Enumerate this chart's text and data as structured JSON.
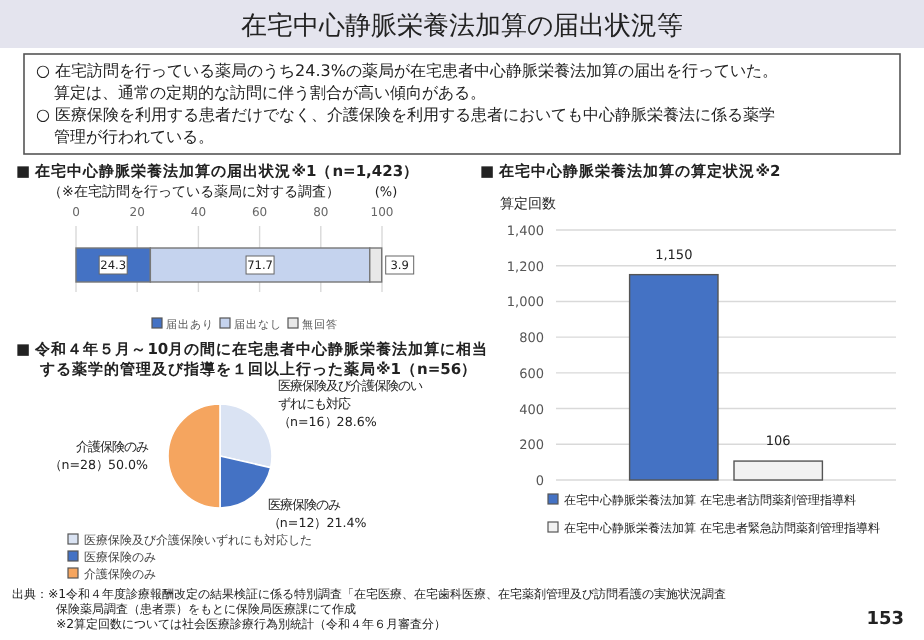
{
  "chart_data": [
    {
      "type": "other",
      "title": "在宅中心静脈栄養法加算の届出状況等",
      "annotations": [
        "○ 在宅訪問を行っている薬局のうち24.3%の薬局が在宅患者中心静脈栄養法加算の届出を行っていた。",
        "算定は、通常の定期的な訪問に伴う割合が高い傾向がある。",
        "○ 医療保険を利用する患者だけでなく、介護保険を利用する患者においても中心静脈栄養法に係る薬学管理が行われている。",
        "出典：※1令和４年度診療報酬改定の結果検証に係る特別調査「在宅医療、在宅歯科医療、在宅薬剤管理及び訪問看護の実施状況調査",
        "保険薬局調査（患者票）をもとに保険局医療課にて作成",
        "※2算定回数については社会医療診療行為別統計（令和４年６月審査分）",
        "153"
      ]
    },
    {
      "type": "bar",
      "orientation": "horizontal",
      "stacked": true,
      "title": "■ 在宅中心静脈栄養法加算の届出状況※1（n=1,423）",
      "subtitle": "（※在宅訪問を行っている薬局に対する調査）",
      "xlabel": "(%)",
      "categories": [
        null
      ],
      "series": [
        {
          "name": "届出あり",
          "color": "#4472c4",
          "values": [
            24.3
          ]
        },
        {
          "name": "届出なし",
          "color": "#c5d3ee",
          "values": [
            71.7
          ]
        },
        {
          "name": "無回答",
          "color": "#e8e8e8",
          "values": [
            3.9
          ]
        }
      ],
      "grid": "x",
      "xlim": [
        0,
        100
      ],
      "xticks": [
        0,
        20,
        40,
        60,
        80,
        100
      ],
      "data_labels": true,
      "legend": "bottom"
    },
    {
      "type": "pie",
      "title": "■ 令和４年５月～10月の間に在宅患者中心静脈栄養法加算に相当する薬学的管理及び指導を１回以上行った薬局※1（n=56）",
      "categories": [
        "医療保険及び介護保険いずれにも対応した",
        "医療保険のみ",
        "介護保険のみ"
      ],
      "values": [
        28.6,
        21.4,
        50.0
      ],
      "colors": [
        "#dae3f3",
        "#4472c4",
        "#f5a55f"
      ],
      "value_labels": [
        "医療保険及び介護保険のいずれにも対応（n=16）28.6%",
        "医療保険のみ（n=12）21.4%",
        "介護保険のみ（n=28）50.0%"
      ],
      "legend": "bottom"
    },
    {
      "type": "bar",
      "title": "■ 在宅中心静脈栄養法加算の算定状況※2",
      "ylabel": "算定回数",
      "categories": [
        null
      ],
      "series": [
        {
          "name": "在宅中心静脈栄養法加算 在宅患者訪問薬剤管理指導料",
          "color": "#4472c4",
          "values": [
            1150
          ],
          "value_labels": [
            "1,150"
          ]
        },
        {
          "name": "在宅中心静脈栄養法加算 在宅患者緊急訪問薬剤管理指導料",
          "color": "#f2f2f2",
          "values": [
            106
          ],
          "value_labels": [
            "106"
          ]
        }
      ],
      "ylim": [
        0,
        1400
      ],
      "yticks": [
        0,
        200,
        400,
        600,
        800,
        {
          "value": 1000,
          "label": "1,000"
        },
        {
          "value": 1200,
          "label": "1,200"
        },
        {
          "value": 1400,
          "label": "1,400"
        }
      ],
      "grid": "y",
      "legend": "bottom"
    }
  ]
}
